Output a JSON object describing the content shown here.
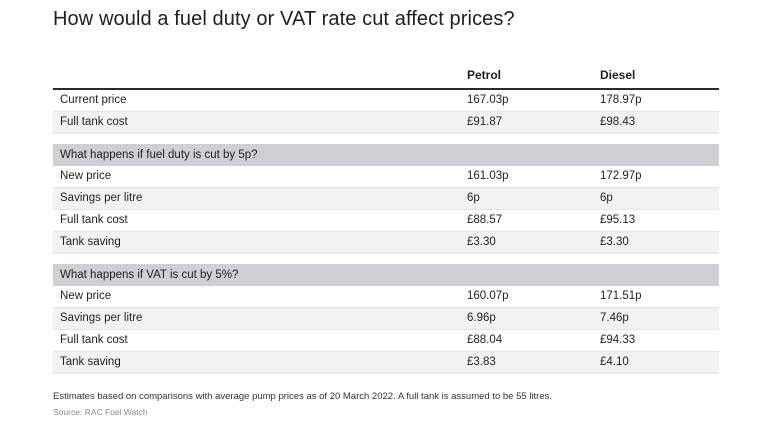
{
  "title": "How would a fuel duty or VAT rate cut affect prices?",
  "columns": {
    "petrol": "Petrol",
    "diesel": "Diesel"
  },
  "sections": [
    {
      "heading": "",
      "rows": [
        {
          "label": "Current price",
          "petrol": "167.03p",
          "diesel": "178.97p"
        },
        {
          "label": "Full tank cost",
          "petrol": "£91.87",
          "diesel": "£98.43"
        }
      ]
    },
    {
      "heading": "What happens if fuel duty is cut by 5p?",
      "rows": [
        {
          "label": "New price",
          "petrol": "161.03p",
          "diesel": "172.97p"
        },
        {
          "label": "Savings per litre",
          "petrol": "6p",
          "diesel": "6p"
        },
        {
          "label": "Full tank cost",
          "petrol": "£88.57",
          "diesel": "£95.13"
        },
        {
          "label": "Tank saving",
          "petrol": "£3.30",
          "diesel": "£3.30"
        }
      ]
    },
    {
      "heading": "What happens if VAT is cut by 5%?",
      "rows": [
        {
          "label": "New price",
          "petrol": "160.07p",
          "diesel": "171.51p"
        },
        {
          "label": "Savings per litre",
          "petrol": "6.96p",
          "diesel": "7.46p"
        },
        {
          "label": "Full tank cost",
          "petrol": "£88.04",
          "diesel": "£94.33"
        },
        {
          "label": "Tank saving",
          "petrol": "£3.83",
          "diesel": "£4.10"
        }
      ]
    }
  ],
  "footnote": "Estimates based on comparisons with average pump prices as of 20 March 2022. A full tank is assumed to be 55 litres.",
  "source": "Source: RAC Fuel Watch",
  "colors": {
    "section_band": "#cfcfd4",
    "alt_row": "#f2f2f2",
    "header_rule": "#2a2a2a"
  }
}
